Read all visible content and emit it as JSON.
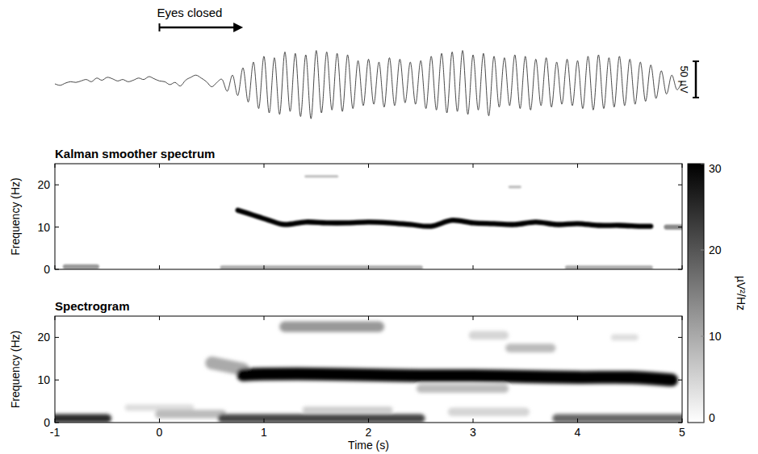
{
  "chart_data": [
    {
      "type": "line",
      "color": "#333333",
      "xlim": [
        -1,
        5
      ],
      "ylim": [
        -60,
        60
      ],
      "tick_labels": false,
      "annotations": [
        {
          "text": "Eyes closed",
          "x": 0,
          "x_end": 0.8
        }
      ],
      "scale_bar": {
        "value": 50,
        "label": "50 µV"
      },
      "x": [
        -1,
        -0.95,
        -0.9,
        -0.85,
        -0.8,
        -0.75,
        -0.7,
        -0.65,
        -0.6,
        -0.55,
        -0.5,
        -0.45,
        -0.4,
        -0.35,
        -0.3,
        -0.25,
        -0.2,
        -0.15,
        -0.1,
        -0.05,
        0,
        0.05,
        0.1,
        0.15,
        0.2,
        0.25,
        0.3,
        0.35,
        0.4,
        0.45,
        0.5,
        0.55,
        0.6,
        0.65,
        0.7,
        0.75,
        0.8,
        0.85,
        0.9,
        0.95,
        1,
        1.05,
        1.1,
        1.15,
        1.2,
        1.25,
        1.3,
        1.35,
        1.4,
        1.45,
        1.5,
        1.55,
        1.6,
        1.65,
        1.7,
        1.75,
        1.8,
        1.85,
        1.9,
        1.95,
        2,
        2.05,
        2.1,
        2.15,
        2.2,
        2.25,
        2.3,
        2.35,
        2.4,
        2.45,
        2.5,
        2.55,
        2.6,
        2.65,
        2.7,
        2.75,
        2.8,
        2.85,
        2.9,
        2.95,
        3,
        3.05,
        3.1,
        3.15,
        3.2,
        3.25,
        3.3,
        3.35,
        3.4,
        3.45,
        3.5,
        3.55,
        3.6,
        3.65,
        3.7,
        3.75,
        3.8,
        3.85,
        3.9,
        3.95,
        4,
        4.05,
        4.1,
        4.15,
        4.2,
        4.25,
        4.3,
        4.35,
        4.4,
        4.45,
        4.5,
        4.55,
        4.6,
        4.65,
        4.7,
        4.75,
        4.8,
        4.85,
        4.9,
        4.95,
        5
      ],
      "values": [
        0,
        -2,
        1,
        3,
        2,
        4,
        6,
        3,
        8,
        5,
        9,
        7,
        4,
        6,
        3,
        5,
        8,
        6,
        10,
        7,
        4,
        3,
        -1,
        2,
        -3,
        5,
        9,
        12,
        8,
        3,
        -4,
        2,
        6,
        -10,
        12,
        -16,
        22,
        -25,
        30,
        -34,
        38,
        -40,
        36,
        -42,
        44,
        -38,
        42,
        -45,
        40,
        -48,
        46,
        -40,
        44,
        -36,
        42,
        -38,
        40,
        -34,
        32,
        -30,
        34,
        -28,
        30,
        -32,
        36,
        -30,
        34,
        -26,
        30,
        -28,
        32,
        -34,
        38,
        -36,
        42,
        -40,
        44,
        -38,
        46,
        -42,
        40,
        -36,
        42,
        -44,
        38,
        -32,
        36,
        -30,
        40,
        -34,
        38,
        -36,
        34,
        -30,
        36,
        -32,
        30,
        -28,
        34,
        -30,
        32,
        -34,
        38,
        -36,
        40,
        -34,
        36,
        -32,
        38,
        -30,
        34,
        -28,
        30,
        -24,
        26,
        -20,
        18,
        -14,
        12,
        -8,
        4
      ]
    },
    {
      "type": "heatmap",
      "title": "Kalman smoother spectrum",
      "ylabel": "Frequency (Hz)",
      "xlim": [
        -1,
        5
      ],
      "xticks": [
        -1,
        0,
        1,
        2,
        3,
        4,
        5
      ],
      "ylim": [
        0,
        25
      ],
      "yticks": [
        0,
        10,
        20
      ],
      "tick_labels": "y",
      "components": [
        {
          "t": [
            0.75,
            0.85,
            0.95,
            1.05,
            1.2,
            1.4,
            1.6,
            1.8,
            2,
            2.2,
            2.4,
            2.6,
            2.8,
            3,
            3.2,
            3.4,
            3.6,
            3.8,
            4,
            4.2,
            4.4,
            4.6,
            4.7
          ],
          "f": [
            14,
            13.2,
            12.4,
            11.6,
            10.6,
            11.2,
            11,
            11,
            11.2,
            11,
            10.6,
            10.2,
            11.6,
            11,
            10.8,
            10.6,
            11.2,
            10.6,
            10.8,
            10.4,
            10.4,
            10.2,
            10.2
          ],
          "power": 30,
          "bandwidth": 1.2
        },
        {
          "t": [
            -0.9,
            -0.6
          ],
          "f": [
            0.6,
            0.6
          ],
          "power": 12,
          "bandwidth": 1.2
        },
        {
          "t": [
            0.6,
            2.5
          ],
          "f": [
            0.4,
            0.4
          ],
          "power": 10,
          "bandwidth": 1
        },
        {
          "t": [
            3.9,
            4.7
          ],
          "f": [
            0.4,
            0.4
          ],
          "power": 10,
          "bandwidth": 1
        },
        {
          "t": [
            4.85,
            5
          ],
          "f": [
            10,
            10
          ],
          "power": 14,
          "bandwidth": 1.2
        },
        {
          "t": [
            1.4,
            1.7
          ],
          "f": [
            22,
            22
          ],
          "power": 8,
          "bandwidth": 0.6
        },
        {
          "t": [
            3.35,
            3.45
          ],
          "f": [
            19.5,
            19.5
          ],
          "power": 8,
          "bandwidth": 0.6
        }
      ]
    },
    {
      "type": "heatmap",
      "title": "Spectrogram",
      "xlabel": "Time (s)",
      "ylabel": "Frequency (Hz)",
      "xlim": [
        -1,
        5
      ],
      "xticks": [
        -1,
        0,
        1,
        2,
        3,
        4,
        5
      ],
      "ylim": [
        0,
        25
      ],
      "yticks": [
        0,
        10,
        20
      ],
      "colorbar": {
        "range": [
          0,
          30
        ],
        "ticks": [
          0,
          10,
          20,
          30
        ],
        "label": "µV²/Hz"
      },
      "components": [
        {
          "t": [
            -1,
            -0.5
          ],
          "f": [
            1,
            1
          ],
          "power": 25,
          "bandwidth": 2
        },
        {
          "t": [
            -0.3,
            0.3
          ],
          "f": [
            3.5,
            3.5
          ],
          "power": 4,
          "bandwidth": 1.5
        },
        {
          "t": [
            0,
            0.6
          ],
          "f": [
            2,
            2
          ],
          "power": 8,
          "bandwidth": 2
        },
        {
          "t": [
            0.6,
            2.5
          ],
          "f": [
            1,
            1
          ],
          "power": 22,
          "bandwidth": 2
        },
        {
          "t": [
            1.4,
            2.2
          ],
          "f": [
            3,
            3
          ],
          "power": 6,
          "bandwidth": 1.5
        },
        {
          "t": [
            2.8,
            3.5
          ],
          "f": [
            2.5,
            2.5
          ],
          "power": 5,
          "bandwidth": 2
        },
        {
          "t": [
            3.8,
            5
          ],
          "f": [
            1,
            1
          ],
          "power": 18,
          "bandwidth": 2
        },
        {
          "t": [
            0.5,
            0.8
          ],
          "f": [
            14,
            12.5
          ],
          "power": 10,
          "bandwidth": 3
        },
        {
          "t": [
            2.5,
            3.3
          ],
          "f": [
            8,
            8
          ],
          "power": 8,
          "bandwidth": 2
        },
        {
          "t": [
            0.8,
            1,
            1.5,
            2,
            2.5,
            3,
            3.5,
            4,
            4.5,
            4.9
          ],
          "f": [
            11.2,
            11.4,
            11.4,
            11.2,
            11,
            11,
            10.8,
            10.6,
            10.6,
            10
          ],
          "power": 30,
          "bandwidth": 3
        },
        {
          "t": [
            1.2,
            2.1
          ],
          "f": [
            22.5,
            22.5
          ],
          "power": 12,
          "bandwidth": 2.5
        },
        {
          "t": [
            3,
            3.3
          ],
          "f": [
            20.5,
            20.5
          ],
          "power": 5,
          "bandwidth": 2
        },
        {
          "t": [
            3.35,
            3.75
          ],
          "f": [
            17.5,
            17.5
          ],
          "power": 8,
          "bandwidth": 2
        },
        {
          "t": [
            4.35,
            4.55
          ],
          "f": [
            20,
            20
          ],
          "power": 4,
          "bandwidth": 1.5
        }
      ]
    }
  ]
}
